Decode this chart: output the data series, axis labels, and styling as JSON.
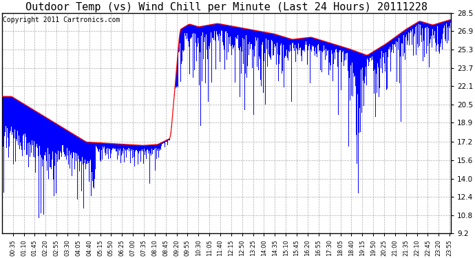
{
  "title": "Outdoor Temp (vs) Wind Chill per Minute (Last 24 Hours) 20111228",
  "copyright": "Copyright 2011 Cartronics.com",
  "yticks": [
    9.2,
    10.8,
    12.4,
    14.0,
    15.6,
    17.2,
    18.9,
    20.5,
    22.1,
    23.7,
    25.3,
    26.9,
    28.5
  ],
  "ymin": 9.2,
  "ymax": 28.5,
  "xtick_labels": [
    "00:35",
    "01:10",
    "01:45",
    "02:20",
    "02:55",
    "03:30",
    "04:05",
    "04:40",
    "05:15",
    "05:50",
    "06:25",
    "07:00",
    "07:35",
    "08:10",
    "08:45",
    "09:20",
    "09:55",
    "10:30",
    "11:05",
    "11:40",
    "12:15",
    "12:50",
    "13:25",
    "14:00",
    "14:35",
    "15:10",
    "15:45",
    "16:20",
    "16:55",
    "17:30",
    "18:05",
    "18:40",
    "19:15",
    "19:50",
    "20:25",
    "21:00",
    "21:35",
    "22:10",
    "22:45",
    "23:20",
    "23:55"
  ],
  "bar_color": "#0000ff",
  "line_color": "#ff0000",
  "bg_color": "#ffffff",
  "grid_color": "#aaaaaa",
  "title_fontsize": 11,
  "copyright_fontsize": 7,
  "figwidth": 6.9,
  "figheight": 3.75,
  "dpi": 100
}
